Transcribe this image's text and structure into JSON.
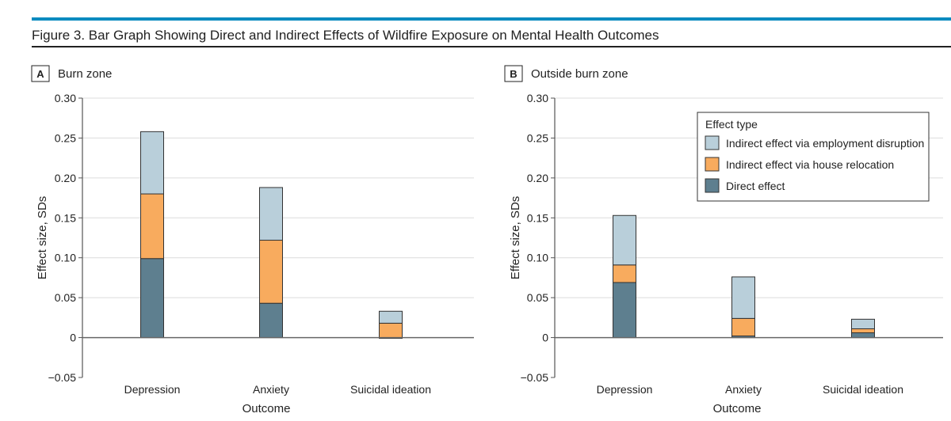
{
  "figure_title": "Figure 3. Bar Graph Showing Direct and Indirect Effects of Wildfire Exposure on Mental Health Outcomes",
  "colors": {
    "accent": "#0a8bbf",
    "employment": "#b9cfda",
    "house": "#f8ab5e",
    "direct": "#5e7f8f"
  },
  "chart_data": [
    {
      "type": "bar",
      "stacked": true,
      "panel": "A",
      "title": "Burn zone",
      "xlabel": "Outcome",
      "ylabel": "Effect size, SDs",
      "ylim": [
        -0.05,
        0.3
      ],
      "yticks": [
        "−0.05",
        "0",
        "0.05",
        "0.10",
        "0.15",
        "0.20",
        "0.25",
        "0.30"
      ],
      "ytick_values": [
        -0.05,
        0,
        0.05,
        0.1,
        0.15,
        0.2,
        0.25,
        0.3
      ],
      "grid": true,
      "categories": [
        "Depression",
        "Anxiety",
        "Suicidal ideation"
      ],
      "series": [
        {
          "name": "Direct effect",
          "values": [
            0.099,
            0.043,
            -0.001
          ]
        },
        {
          "name": "Indirect effect via house relocation",
          "values": [
            0.081,
            0.079,
            0.018
          ]
        },
        {
          "name": "Indirect effect via employment disruption",
          "values": [
            0.078,
            0.066,
            0.015
          ]
        }
      ]
    },
    {
      "type": "bar",
      "stacked": true,
      "panel": "B",
      "title": "Outside burn zone",
      "xlabel": "Outcome",
      "ylabel": "Effect size, SDs",
      "ylim": [
        -0.05,
        0.3
      ],
      "yticks": [
        "−0.05",
        "0",
        "0.05",
        "0.10",
        "0.15",
        "0.20",
        "0.25",
        "0.30"
      ],
      "ytick_values": [
        -0.05,
        0,
        0.05,
        0.1,
        0.15,
        0.2,
        0.25,
        0.3
      ],
      "grid": true,
      "categories": [
        "Depression",
        "Anxiety",
        "Suicidal ideation"
      ],
      "series": [
        {
          "name": "Direct effect",
          "values": [
            0.069,
            0.002,
            0.006
          ]
        },
        {
          "name": "Indirect effect via house relocation",
          "values": [
            0.022,
            0.022,
            0.005
          ]
        },
        {
          "name": "Indirect effect via employment disruption",
          "values": [
            0.062,
            0.052,
            0.012
          ]
        }
      ],
      "legend": {
        "title": "Effect type",
        "placement": "top-right",
        "entries": [
          "Indirect effect via employment disruption",
          "Indirect effect via house relocation",
          "Direct effect"
        ]
      }
    }
  ]
}
